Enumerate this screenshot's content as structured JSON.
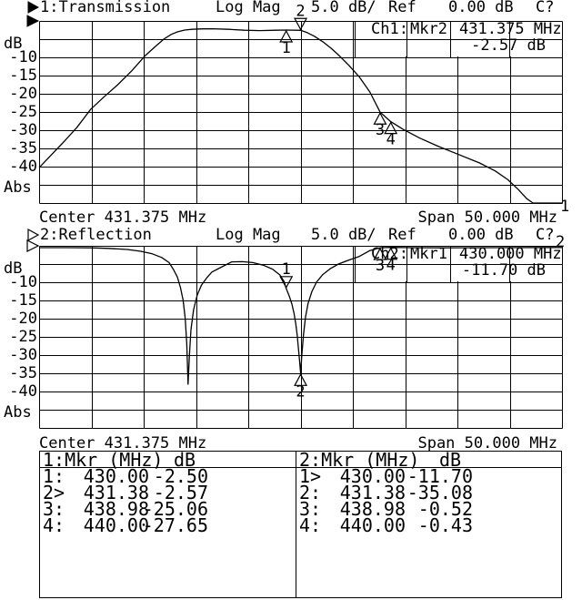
{
  "chart_data": [
    {
      "type": "line",
      "channel": "1",
      "title": "1:Transmission",
      "format": "Log Mag",
      "scale": "5.0 dB/",
      "ref_label": "Ref",
      "ref_value": "0.00 dB",
      "status": "C?",
      "center_label": "Center 431.375 MHz",
      "span_label": "Span 50.000 MHz",
      "trace_end_label": "1",
      "unit_label": "dB",
      "abs_label": "Abs",
      "indicator_style": "filled",
      "x_axis": {
        "center_mhz": 431.375,
        "span_mhz": 50.0,
        "min": 406.375,
        "max": 456.375,
        "unit": "MHz"
      },
      "y_axis": {
        "unit": "dB",
        "db_per_div": 5.0,
        "ref_db": 0.0,
        "min": -50,
        "max": 0,
        "tick_labels": [
          "-10",
          "-15",
          "-20",
          "-25",
          "-30",
          "-35",
          "-40"
        ]
      },
      "info_box": {
        "channel": "Ch1:",
        "marker": "Mkr2",
        "freq": "431.375 MHz",
        "value": "-2.57 dB"
      },
      "markers": [
        {
          "id": "1",
          "freq_mhz": 430.0,
          "db": -2.5,
          "active": false
        },
        {
          "id": "2",
          "freq_mhz": 431.38,
          "db": -2.57,
          "active": true
        },
        {
          "id": "3",
          "freq_mhz": 438.98,
          "db": -25.06,
          "active": false
        },
        {
          "id": "4",
          "freq_mhz": 440.0,
          "db": -27.65,
          "active": false
        }
      ],
      "trace": [
        [
          406.375,
          -40.3
        ],
        [
          407.6,
          -36.6
        ],
        [
          408.8,
          -33.0
        ],
        [
          410.0,
          -29.2
        ],
        [
          411.3,
          -24.3
        ],
        [
          412.6,
          -20.8
        ],
        [
          413.9,
          -17.5
        ],
        [
          415.2,
          -13.8
        ],
        [
          416.5,
          -9.6
        ],
        [
          417.5,
          -7.0
        ],
        [
          418.3,
          -5.0
        ],
        [
          419.0,
          -3.7
        ],
        [
          419.6,
          -3.0
        ],
        [
          420.3,
          -2.5
        ],
        [
          421.0,
          -2.3
        ],
        [
          422.0,
          -2.18
        ],
        [
          423.0,
          -2.15
        ],
        [
          424.5,
          -2.3
        ],
        [
          426.0,
          -2.55
        ],
        [
          427.5,
          -2.65
        ],
        [
          429.0,
          -2.55
        ],
        [
          430.0,
          -2.5
        ],
        [
          431.38,
          -2.57
        ],
        [
          432.0,
          -3.2
        ],
        [
          432.7,
          -4.2
        ],
        [
          433.5,
          -5.7
        ],
        [
          434.3,
          -7.5
        ],
        [
          435.1,
          -9.6
        ],
        [
          436.0,
          -12.2
        ],
        [
          437.0,
          -15.4
        ],
        [
          438.0,
          -19.5
        ],
        [
          438.98,
          -25.06
        ],
        [
          440.0,
          -27.65
        ],
        [
          441.2,
          -29.8
        ],
        [
          442.8,
          -32.2
        ],
        [
          444.6,
          -34.5
        ],
        [
          446.6,
          -36.8
        ],
        [
          448.5,
          -39.0
        ],
        [
          450.0,
          -41.2
        ],
        [
          451.2,
          -43.6
        ],
        [
          452.2,
          -46.3
        ],
        [
          453.0,
          -48.8
        ],
        [
          453.6,
          -50.0
        ],
        [
          456.375,
          -50.0
        ]
      ]
    },
    {
      "type": "line",
      "channel": "2",
      "title": "2:Reflection",
      "format": "Log Mag",
      "scale": "5.0 dB/",
      "ref_label": "Ref",
      "ref_value": "0.00 dB",
      "status": "C?",
      "center_label": "Center 431.375 MHz",
      "span_label": "Span 50.000 MHz",
      "trace_end_label": "2",
      "unit_label": "dB",
      "abs_label": "Abs",
      "indicator_style": "hollow",
      "x_axis": {
        "center_mhz": 431.375,
        "span_mhz": 50.0,
        "min": 406.375,
        "max": 456.375,
        "unit": "MHz"
      },
      "y_axis": {
        "unit": "dB",
        "db_per_div": 5.0,
        "ref_db": 0.0,
        "min": -50,
        "max": 0,
        "tick_labels": [
          "-10",
          "-15",
          "-20",
          "-25",
          "-30",
          "-35",
          "-40"
        ]
      },
      "info_box": {
        "channel": "Ch2:",
        "marker": "Mkr1",
        "freq": "430.000 MHz",
        "value": "-11.70 dB"
      },
      "markers": [
        {
          "id": "1",
          "freq_mhz": 430.0,
          "db": -11.7,
          "active": true
        },
        {
          "id": "2",
          "freq_mhz": 431.38,
          "db": -35.08,
          "active": false
        },
        {
          "id": "3",
          "freq_mhz": 438.98,
          "db": -0.52,
          "active": false
        },
        {
          "id": "4",
          "freq_mhz": 440.0,
          "db": -0.43,
          "active": false
        }
      ],
      "trace": [
        [
          406.375,
          -0.5
        ],
        [
          409.0,
          -0.5
        ],
        [
          411.3,
          -0.55
        ],
        [
          413.0,
          -0.7
        ],
        [
          414.8,
          -1.0
        ],
        [
          416.1,
          -1.5
        ],
        [
          417.2,
          -2.2
        ],
        [
          418.1,
          -3.2
        ],
        [
          418.8,
          -4.6
        ],
        [
          419.2,
          -6.4
        ],
        [
          419.6,
          -8.6
        ],
        [
          419.9,
          -11.5
        ],
        [
          420.15,
          -15.0
        ],
        [
          420.35,
          -20.0
        ],
        [
          420.5,
          -27.0
        ],
        [
          420.62,
          -38.0
        ],
        [
          420.75,
          -30.0
        ],
        [
          420.9,
          -23.0
        ],
        [
          421.15,
          -17.5
        ],
        [
          421.5,
          -13.5
        ],
        [
          421.9,
          -10.8
        ],
        [
          422.4,
          -8.8
        ],
        [
          422.9,
          -7.2
        ],
        [
          423.7,
          -6.0
        ],
        [
          424.8,
          -4.4
        ],
        [
          425.8,
          -4.35
        ],
        [
          426.8,
          -4.6
        ],
        [
          427.8,
          -5.3
        ],
        [
          428.7,
          -6.4
        ],
        [
          429.4,
          -8.0
        ],
        [
          429.8,
          -9.8
        ],
        [
          430.0,
          -11.7
        ],
        [
          430.3,
          -13.8
        ],
        [
          430.55,
          -16.0
        ],
        [
          430.75,
          -18.5
        ],
        [
          430.92,
          -21.5
        ],
        [
          431.05,
          -24.5
        ],
        [
          431.17,
          -28.0
        ],
        [
          431.28,
          -31.5
        ],
        [
          431.38,
          -35.08
        ],
        [
          431.5,
          -30.0
        ],
        [
          431.65,
          -24.5
        ],
        [
          431.85,
          -19.5
        ],
        [
          432.1,
          -15.8
        ],
        [
          432.45,
          -12.6
        ],
        [
          432.9,
          -10.0
        ],
        [
          433.5,
          -7.9
        ],
        [
          434.2,
          -6.3
        ],
        [
          435.0,
          -5.0
        ],
        [
          436.0,
          -3.9
        ],
        [
          437.0,
          -2.9
        ],
        [
          438.0,
          -1.3
        ],
        [
          438.98,
          -0.52
        ],
        [
          440.0,
          -0.43
        ],
        [
          442.0,
          -0.5
        ],
        [
          445.0,
          -0.55
        ],
        [
          450.0,
          -0.5
        ],
        [
          456.375,
          -0.45
        ]
      ]
    }
  ],
  "marker_tables": {
    "left": {
      "header": {
        "title": "1:Mkr (MHz)",
        "unit": "dB"
      },
      "rows": [
        {
          "id": "1:",
          "freq": "430.00",
          "db": "-2.50"
        },
        {
          "id": "2>",
          "freq": "431.38",
          "db": "-2.57"
        },
        {
          "id": "3:",
          "freq": "438.98",
          "db": "-25.06"
        },
        {
          "id": "4:",
          "freq": "440.00",
          "db": "-27.65"
        }
      ]
    },
    "right": {
      "header": {
        "title": "2:Mkr (MHz)",
        "unit": "dB"
      },
      "rows": [
        {
          "id": "1>",
          "freq": "430.00",
          "db": "-11.70"
        },
        {
          "id": "2:",
          "freq": "431.38",
          "db": "-35.08"
        },
        {
          "id": "3:",
          "freq": "438.98",
          "db": "-0.52"
        },
        {
          "id": "4:",
          "freq": "440.00",
          "db": "-0.43"
        }
      ]
    }
  }
}
